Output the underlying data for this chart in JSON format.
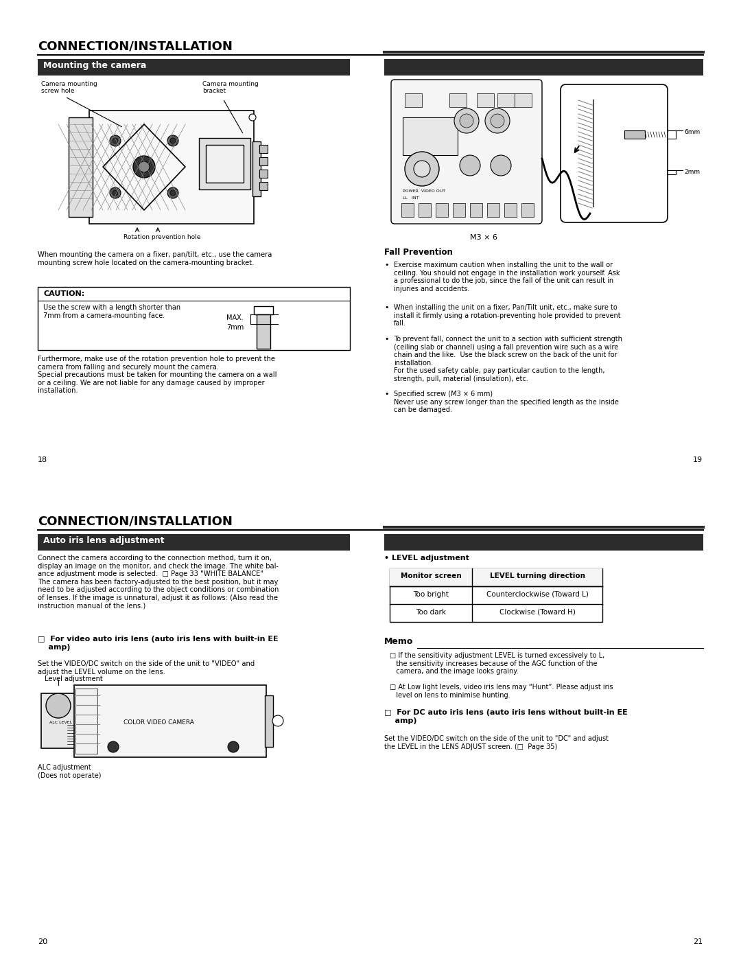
{
  "bg_color": "#ffffff",
  "page_width": 10.8,
  "page_height": 13.97,
  "top_title": "CONNECTION/INSTALLATION",
  "section1_header": "Mounting the camera",
  "section1_left_text1": "When mounting the camera on a fixer, pan/tilt, etc., use the camera\nmounting screw hole located on the camera-mounting bracket.",
  "caution_title": "CAUTION:",
  "caution_text": "Use the screw with a length shorter than\n7mm from a camera-mounting face.",
  "section1_left_text2": "Furthermore, make use of the rotation prevention hole to prevent the\ncamera from falling and securely mount the camera.\nSpecial precautions must be taken for mounting the camera on a wall\nor a ceiling. We are not liable for any damage caused by improper\ninstallation.",
  "page_num_left1": "18",
  "page_num_right1": "19",
  "fall_prevention_title": "Fall Prevention",
  "fall_bullet1": "Exercise maximum caution when installing the unit to the wall or\nceiling. You should not engage in the installation work yourself. Ask\na professional to do the job, since the fall of the unit can result in\ninjuries and accidents.",
  "fall_bullet2": "When installing the unit on a fixer, Pan/Tilt unit, etc., make sure to\ninstall it firmly using a rotation-preventing hole provided to prevent\nfall.",
  "fall_bullet3": "To prevent fall, connect the unit to a section with sufficient strength\n(ceiling slab or channel) using a fall prevention wire such as a wire\nchain and the like.  Use the black screw on the back of the unit for\ninstallation.\nFor the used safety cable, pay particular caution to the length,\nstrength, pull, material (insulation), etc.",
  "fall_bullet4": "Specified screw (M3 × 6 mm)\nNever use any screw longer than the specified length as the inside\ncan be damaged.",
  "bottom_title": "CONNECTION/INSTALLATION",
  "section2_header": "Auto iris lens adjustment",
  "section2_text": "Connect the camera according to the connection method, turn it on,\ndisplay an image on the monitor, and check the image. The white bal-\nance adjustment mode is selected.  □ Page 33 \"WHITE BALANCE\"\nThe camera has been factory-adjusted to the best position, but it may\nneed to be adjusted according to the object conditions or combination\nof lenses. If the image is unnatural, adjust it as follows: (Also read the\ninstruction manual of the lens.)",
  "for_video_title": "□  For video auto iris lens (auto iris lens with built-in EE\n    amp)",
  "for_video_text": "Set the VIDEO/DC switch on the side of the unit to \"VIDEO\" and\nadjust the LEVEL volume on the lens.",
  "level_adj_label": "Level adjustment",
  "alc_adj_label": "ALC adjustment\n(Does not operate)",
  "level_heading": "• LEVEL adjustment",
  "table_headers": [
    "Monitor screen",
    "LEVEL turning direction"
  ],
  "table_row1": [
    "Too bright",
    "Counterclockwise (Toward L)"
  ],
  "table_row2": [
    "Too dark",
    "Clockwise (Toward H)"
  ],
  "memo_title": "Memo",
  "memo_bullet1": "□ If the sensitivity adjustment LEVEL is turned excessively to L,\n   the sensitivity increases because of the AGC function of the\n   camera, and the image looks grainy.",
  "memo_bullet2": "□ At Low light levels, video iris lens may “Hunt”. Please adjust iris\n   level on lens to minimise hunting.",
  "for_dc_title": "□  For DC auto iris lens (auto iris lens without built-in EE\n    amp)",
  "for_dc_text": "Set the VIDEO/DC switch on the side of the unit to \"DC\" and adjust\nthe LEVEL in the LENS ADJUST screen. (□  Page 35)",
  "page_num_left2": "20",
  "page_num_right2": "21",
  "camera_label1": "Camera mounting\nscrew hole",
  "camera_label2": "Camera mounting\nbracket",
  "camera_label3": "Rotation prevention hole",
  "screw_label3": "M3 × 6"
}
